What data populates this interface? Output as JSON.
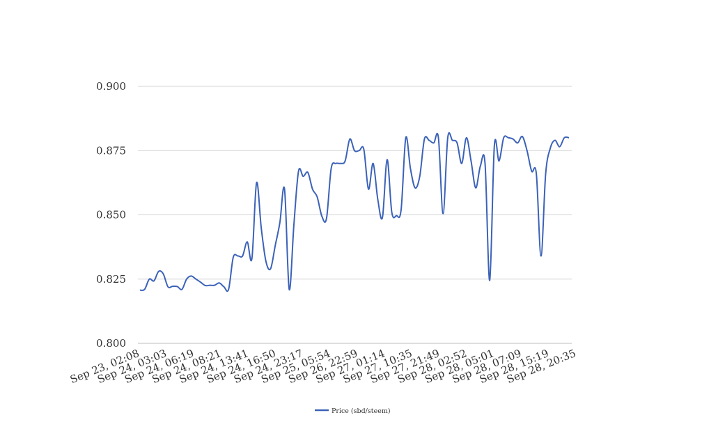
{
  "chart_data": {
    "type": "line",
    "title": "",
    "xlabel": "",
    "ylabel": "",
    "ylim": [
      0.8,
      0.9
    ],
    "yticks": [
      "0.800",
      "0.825",
      "0.850",
      "0.875",
      "0.900"
    ],
    "grid": "horizontal",
    "legend_position": "bottom",
    "x_tick_labels": [
      "Sep 23, 02:08",
      "Sep 24, 03:03",
      "Sep 24, 06:19",
      "Sep 24, 08:21",
      "Sep 24, 13:41",
      "Sep 24, 16:50",
      "Sep 24, 23:17",
      "Sep 25, 05:54",
      "Sep 26, 22:59",
      "Sep 27, 01:14",
      "Sep 27, 10:35",
      "Sep 27, 21:49",
      "Sep 28, 02:52",
      "Sep 28, 05:01",
      "Sep 28, 07:09",
      "Sep 28, 15:19",
      "Sep 28, 20:35"
    ],
    "series": [
      {
        "name": "Price (sbd/steem)",
        "color": "#3b62b8",
        "values": [
          0.8207,
          0.821,
          0.825,
          0.8243,
          0.828,
          0.827,
          0.822,
          0.8222,
          0.8221,
          0.821,
          0.825,
          0.8262,
          0.825,
          0.8238,
          0.8225,
          0.8226,
          0.8226,
          0.8235,
          0.822,
          0.821,
          0.8335,
          0.834,
          0.834,
          0.8395,
          0.833,
          0.8625,
          0.845,
          0.832,
          0.829,
          0.838,
          0.847,
          0.86,
          0.821,
          0.846,
          0.867,
          0.865,
          0.8665,
          0.86,
          0.857,
          0.8495,
          0.8486,
          0.868,
          0.87,
          0.87,
          0.871,
          0.8795,
          0.875,
          0.875,
          0.8755,
          0.86,
          0.87,
          0.856,
          0.849,
          0.8715,
          0.851,
          0.8497,
          0.852,
          0.88,
          0.868,
          0.8605,
          0.865,
          0.8795,
          0.879,
          0.878,
          0.88,
          0.8505,
          0.88,
          0.879,
          0.878,
          0.87,
          0.88,
          0.871,
          0.8605,
          0.869,
          0.87,
          0.8245,
          0.877,
          0.871,
          0.88,
          0.88,
          0.8795,
          0.878,
          0.8805,
          0.875,
          0.867,
          0.866,
          0.834,
          0.866,
          0.876,
          0.879,
          0.8765,
          0.88,
          0.88
        ]
      }
    ]
  }
}
